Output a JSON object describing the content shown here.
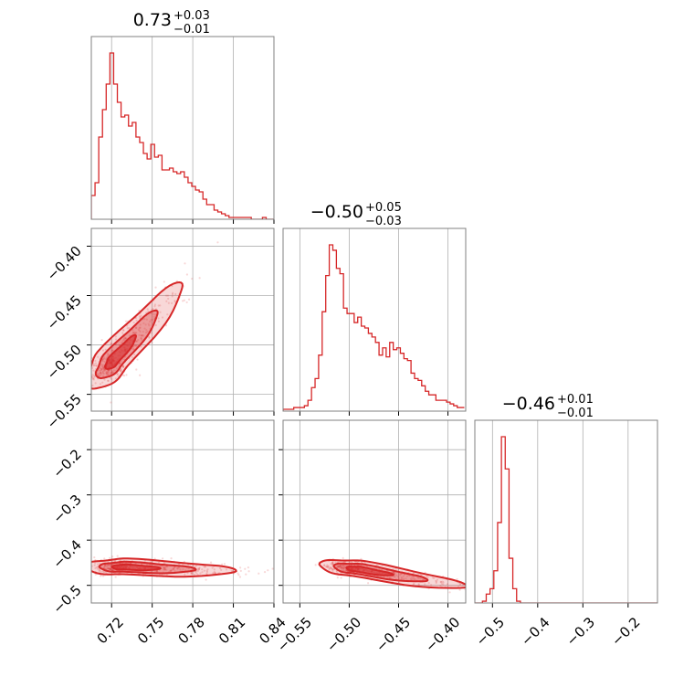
{
  "chart_data": {
    "type": "corner",
    "color": "#d62728",
    "parameters": [
      {
        "title_main": "0.73",
        "title_plus": "+0.03",
        "title_minus": "−0.01",
        "range": [
          0.705,
          0.84
        ]
      },
      {
        "title_main": "−0.50",
        "title_plus": "+0.05",
        "title_minus": "−0.03",
        "range": [
          -0.567,
          -0.382
        ]
      },
      {
        "title_main": "−0.46",
        "title_plus": "+0.01",
        "title_minus": "−0.01",
        "range": [
          -0.539,
          -0.135
        ]
      }
    ],
    "ticks": [
      {
        "values": [
          0.72,
          0.75,
          0.78,
          0.81,
          0.84
        ],
        "labels": [
          "0.72",
          "0.75",
          "0.78",
          "0.81",
          "0.84"
        ]
      },
      {
        "values": [
          -0.55,
          -0.5,
          -0.45,
          -0.4
        ],
        "labels": [
          "−0.55",
          "−0.50",
          "−0.45",
          "−0.40"
        ]
      },
      {
        "values": [
          -0.5,
          -0.4,
          -0.3,
          -0.2
        ],
        "labels": [
          "−0.5",
          "−0.4",
          "−0.3",
          "−0.2"
        ]
      }
    ],
    "histograms": [
      {
        "edges_start": 0.705,
        "bin_width": 0.00275,
        "counts": [
          0.13,
          0.2,
          0.45,
          0.6,
          0.74,
          0.91,
          0.74,
          0.64,
          0.56,
          0.57,
          0.51,
          0.53,
          0.45,
          0.42,
          0.36,
          0.33,
          0.41,
          0.34,
          0.35,
          0.27,
          0.27,
          0.28,
          0.26,
          0.25,
          0.26,
          0.23,
          0.2,
          0.18,
          0.16,
          0.15,
          0.11,
          0.08,
          0.08,
          0.05,
          0.04,
          0.03,
          0.02,
          0.01,
          0.01,
          0.01,
          0.01,
          0.01,
          0.01,
          0.0,
          0.0,
          0.0,
          0.01,
          0.0,
          0.0
        ]
      },
      {
        "edges_start": -0.567,
        "bin_width": 0.0036,
        "counts": [
          0.01,
          0.01,
          0.01,
          0.02,
          0.02,
          0.02,
          0.03,
          0.06,
          0.13,
          0.18,
          0.31,
          0.55,
          0.75,
          0.92,
          0.89,
          0.79,
          0.76,
          0.57,
          0.54,
          0.54,
          0.49,
          0.52,
          0.47,
          0.46,
          0.43,
          0.41,
          0.38,
          0.31,
          0.35,
          0.3,
          0.38,
          0.34,
          0.35,
          0.32,
          0.29,
          0.28,
          0.21,
          0.18,
          0.17,
          0.14,
          0.11,
          0.09,
          0.09,
          0.06,
          0.06,
          0.06,
          0.05,
          0.04,
          0.03,
          0.02,
          0.02
        ]
      },
      {
        "edges_start": -0.539,
        "bin_width": 0.0084,
        "counts": [
          0.0,
          0.0,
          0.01,
          0.05,
          0.08,
          0.18,
          0.45,
          0.93,
          0.75,
          0.25,
          0.08,
          0.01,
          0.0,
          0.0,
          0.0,
          0.0,
          0.0,
          0.0,
          0.0,
          0.0,
          0.0,
          0.0,
          0.0,
          0.0,
          0.0,
          0.0,
          0.0,
          0.0,
          0.0,
          0.0,
          0.0,
          0.0,
          0.0,
          0.0,
          0.0,
          0.0,
          0.0,
          0.0,
          0.0,
          0.0,
          0.0,
          0.0,
          0.0,
          0.0,
          0.0,
          0.0,
          0.0,
          0.0
        ]
      }
    ],
    "pairs": [
      {
        "x_param": 0,
        "y_param": 1,
        "center": [
          0.722,
          -0.515
        ],
        "slope": 1.58,
        "spread_along": 0.028,
        "spread_across": 0.006
      },
      {
        "x_param": 0,
        "y_param": 2,
        "center": [
          0.73,
          -0.46
        ],
        "slope": -0.1,
        "spread_along": 0.025,
        "spread_across": 0.008
      },
      {
        "x_param": 1,
        "y_param": 2,
        "center": [
          -0.49,
          -0.465
        ],
        "slope": -0.35,
        "spread_along": 0.035,
        "spread_across": 0.008
      }
    ],
    "grid": true
  }
}
